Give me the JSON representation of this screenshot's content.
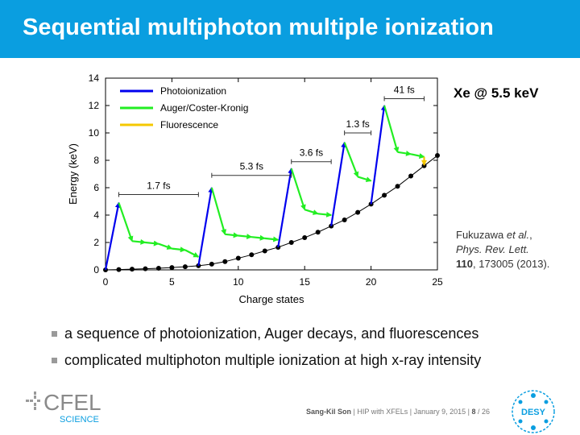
{
  "slide": {
    "title": "Sequential multiphoton multiple ionization",
    "element_label": "Xe @ 5.5 keV",
    "citation": {
      "authors": "Fukuzawa ",
      "etal": "et al.",
      "journal": "Phys. Rev. Lett.",
      "volume": "110",
      "rest": ", 173005 (2013)."
    },
    "bullets": [
      "a sequence of photoionization, Auger decays, and fluorescences",
      "complicated multiphoton multiple ionization at high x-ray intensity"
    ],
    "footer": {
      "author": "Sang-Kil Son",
      "talk": "HIP with XFELs",
      "date": "January 9, 2015",
      "page": "8",
      "total": "/ 26"
    },
    "logos": {
      "cfel_top": "CFEL",
      "cfel_bottom": "SCIENCE",
      "desy": "DESY"
    }
  },
  "chart_data": {
    "type": "line",
    "xlabel": "Charge states",
    "ylabel": "Energy (keV)",
    "xlim": [
      0,
      25
    ],
    "ylim": [
      0,
      14
    ],
    "xticks": [
      0,
      5,
      10,
      15,
      20,
      25
    ],
    "yticks": [
      0,
      2,
      4,
      6,
      8,
      10,
      12,
      14
    ],
    "legend_position": "top-left",
    "legend": [
      {
        "name": "Photoionization",
        "color": "#0000ee"
      },
      {
        "name": "Auger/Coster-Kronig",
        "color": "#22ee22"
      },
      {
        "name": "Fluorescence",
        "color": "#f5c800"
      }
    ],
    "ground_states": {
      "x": [
        0,
        1,
        2,
        3,
        4,
        5,
        6,
        7,
        8,
        9,
        10,
        11,
        12,
        13,
        14,
        15,
        16,
        17,
        18,
        19,
        20,
        21,
        22,
        23,
        24,
        25
      ],
      "y": [
        0.0,
        0.02,
        0.05,
        0.08,
        0.12,
        0.17,
        0.23,
        0.3,
        0.42,
        0.6,
        0.85,
        1.1,
        1.38,
        1.65,
        2.0,
        2.35,
        2.75,
        3.2,
        3.65,
        4.2,
        4.8,
        5.45,
        6.1,
        6.85,
        7.6,
        8.35
      ]
    },
    "pathway": [
      {
        "kind": "photo",
        "from": [
          0,
          0.0
        ],
        "to": [
          1,
          4.9
        ]
      },
      {
        "kind": "auger",
        "from": [
          1,
          4.9
        ],
        "to": [
          2,
          2.1
        ]
      },
      {
        "kind": "auger",
        "from": [
          2,
          2.1
        ],
        "to": [
          3,
          2.0
        ]
      },
      {
        "kind": "auger",
        "from": [
          3,
          2.0
        ],
        "to": [
          4,
          1.9
        ]
      },
      {
        "kind": "auger",
        "from": [
          4,
          1.9
        ],
        "to": [
          5,
          1.55
        ]
      },
      {
        "kind": "auger",
        "from": [
          5,
          1.55
        ],
        "to": [
          6,
          1.45
        ]
      },
      {
        "kind": "auger",
        "from": [
          6,
          1.45
        ],
        "to": [
          7,
          0.95
        ]
      },
      {
        "kind": "photo",
        "from": [
          7,
          0.3
        ],
        "to": [
          8,
          6.0
        ]
      },
      {
        "kind": "auger",
        "from": [
          8,
          6.0
        ],
        "to": [
          9,
          2.6
        ]
      },
      {
        "kind": "auger",
        "from": [
          9,
          2.6
        ],
        "to": [
          10,
          2.5
        ]
      },
      {
        "kind": "auger",
        "from": [
          10,
          2.5
        ],
        "to": [
          11,
          2.4
        ]
      },
      {
        "kind": "auger",
        "from": [
          11,
          2.4
        ],
        "to": [
          12,
          2.3
        ]
      },
      {
        "kind": "auger",
        "from": [
          12,
          2.3
        ],
        "to": [
          13,
          2.2
        ]
      },
      {
        "kind": "photo",
        "from": [
          13,
          1.65
        ],
        "to": [
          14,
          7.4
        ]
      },
      {
        "kind": "auger",
        "from": [
          14,
          7.4
        ],
        "to": [
          15,
          4.4
        ]
      },
      {
        "kind": "auger",
        "from": [
          15,
          4.4
        ],
        "to": [
          16,
          4.1
        ]
      },
      {
        "kind": "auger",
        "from": [
          16,
          4.1
        ],
        "to": [
          17,
          4.0
        ]
      },
      {
        "kind": "photo",
        "from": [
          17,
          3.2
        ],
        "to": [
          18,
          9.3
        ]
      },
      {
        "kind": "auger",
        "from": [
          18,
          9.3
        ],
        "to": [
          19,
          6.8
        ]
      },
      {
        "kind": "auger",
        "from": [
          19,
          6.8
        ],
        "to": [
          20,
          6.5
        ]
      },
      {
        "kind": "photo",
        "from": [
          20,
          4.8
        ],
        "to": [
          21,
          12.0
        ]
      },
      {
        "kind": "auger",
        "from": [
          21,
          12.0
        ],
        "to": [
          22,
          8.6
        ]
      },
      {
        "kind": "auger",
        "from": [
          22,
          8.6
        ],
        "to": [
          23,
          8.45
        ]
      },
      {
        "kind": "auger",
        "from": [
          23,
          8.45
        ],
        "to": [
          24,
          8.25
        ]
      },
      {
        "kind": "fluor",
        "from": [
          24,
          8.25
        ],
        "to": [
          24,
          7.65
        ]
      }
    ],
    "time_annotations": [
      {
        "label": "1.7 fs",
        "x1": 1,
        "x2": 7,
        "y": 5.5
      },
      {
        "label": "5.3 fs",
        "x1": 8,
        "x2": 14,
        "y": 6.9
      },
      {
        "label": "3.6 fs",
        "x1": 14,
        "x2": 17,
        "y": 7.9
      },
      {
        "label": "1.3 fs",
        "x1": 18,
        "x2": 20,
        "y": 10.0
      },
      {
        "label": "41 fs",
        "x1": 21,
        "x2": 24,
        "y": 12.5
      }
    ]
  }
}
